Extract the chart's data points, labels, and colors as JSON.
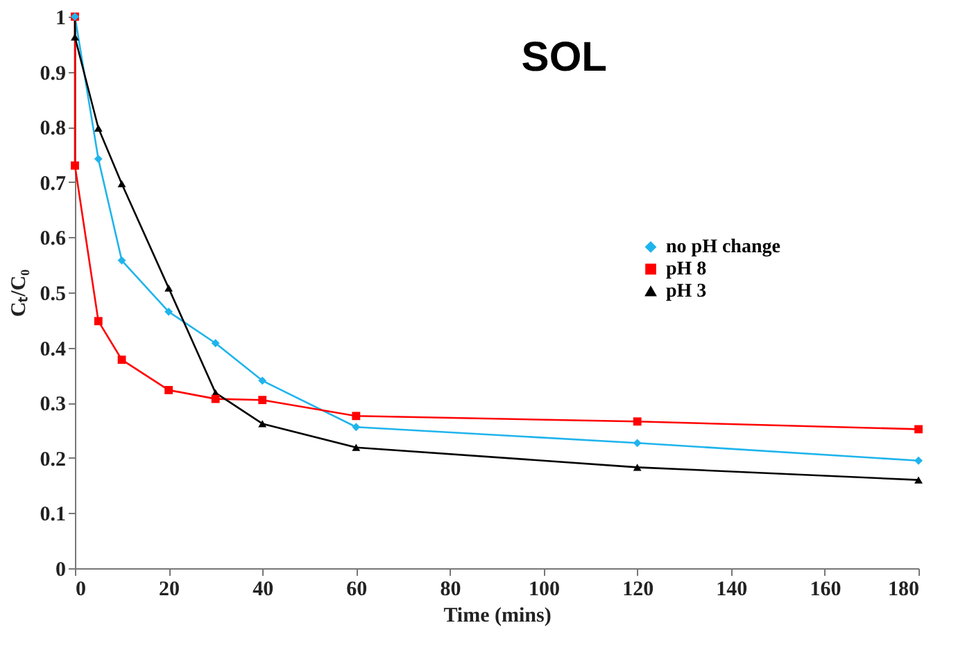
{
  "chart_data": {
    "type": "line",
    "title": "SOL",
    "xlabel": "Time (mins)",
    "ylabel": "Cₜ/C₀",
    "xlim": [
      0,
      180
    ],
    "xticks": [
      0,
      20,
      40,
      60,
      80,
      100,
      120,
      140,
      160,
      180
    ],
    "ylim": [
      0,
      1
    ],
    "yticks": [
      0,
      0.1,
      0.2,
      0.3,
      0.4,
      0.5,
      0.6,
      0.7,
      0.8,
      0.9,
      1
    ],
    "grid": false,
    "legend": "right",
    "line_style": "solid",
    "series": [
      {
        "name": "no pH change",
        "color": "#1fb4ec",
        "marker": "diamond",
        "x": [
          0,
          5,
          10,
          20,
          30,
          40,
          60,
          120,
          180
        ],
        "values": [
          1.0,
          0.742,
          0.558,
          0.465,
          0.408,
          0.34,
          0.256,
          0.227,
          0.195
        ]
      },
      {
        "name": "pH 8",
        "color": "#ff0000",
        "marker": "square",
        "x": [
          0,
          0,
          5,
          10,
          20,
          30,
          40,
          60,
          120,
          180
        ],
        "values": [
          1.0,
          0.73,
          0.448,
          0.378,
          0.323,
          0.307,
          0.305,
          0.276,
          0.266,
          0.252
        ]
      },
      {
        "name": "pH 3",
        "color": "#000000",
        "marker": "triangle",
        "x": [
          0,
          0,
          5,
          10,
          20,
          30,
          40,
          60,
          120,
          180
        ],
        "values": [
          1.0,
          0.963,
          0.798,
          0.697,
          0.508,
          0.318,
          0.262,
          0.219,
          0.183,
          0.16
        ]
      }
    ]
  }
}
